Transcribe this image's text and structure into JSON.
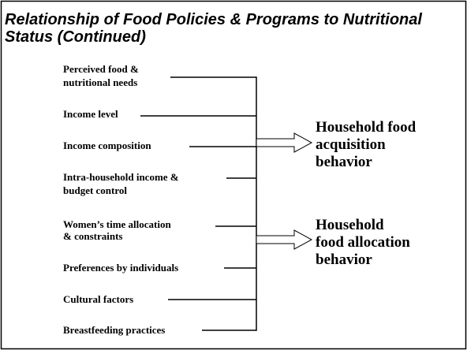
{
  "title": {
    "lines": [
      "Relationship of Food Policies & Programs to Nutritional",
      "Status (Continued)"
    ]
  },
  "factors": [
    {
      "lines": [
        "Perceived food &",
        "nutritional needs"
      ]
    },
    {
      "lines": [
        "Income level"
      ]
    },
    {
      "lines": [
        "Income composition"
      ]
    },
    {
      "lines": [
        "Intra-household income &",
        "budget control"
      ]
    },
    {
      "lines": [
        "Women’s time allocation",
        "& constraints"
      ]
    },
    {
      "lines": [
        "Preferences by individuals"
      ]
    },
    {
      "lines": [
        "Cultural factors"
      ]
    },
    {
      "lines": [
        "Breastfeeding practices"
      ]
    }
  ],
  "outcomes": [
    {
      "lines": [
        "Household food",
        "acquisition",
        "behavior"
      ]
    },
    {
      "lines": [
        "Household",
        "food allocation",
        "behavior"
      ]
    }
  ]
}
